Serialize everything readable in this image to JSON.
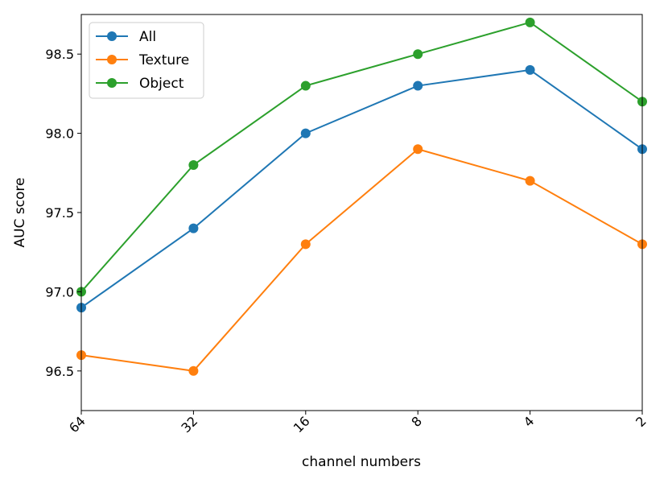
{
  "chart_data": {
    "type": "line",
    "title": "",
    "xlabel": "channel numbers",
    "ylabel": "AUC score",
    "categories": [
      "64",
      "32",
      "16",
      "8",
      "4",
      "2"
    ],
    "ylim": [
      96.25,
      98.75
    ],
    "yticks": [
      96.5,
      97.0,
      97.5,
      98.0,
      98.5
    ],
    "ytick_labels": [
      "96.5",
      "97.0",
      "97.5",
      "98.0",
      "98.5"
    ],
    "grid": false,
    "legend_position": "top-left",
    "series": [
      {
        "name": "All",
        "color": "#1f77b4",
        "values": [
          96.9,
          97.4,
          98.0,
          98.3,
          98.4,
          97.9
        ]
      },
      {
        "name": "Texture",
        "color": "#ff7f0e",
        "values": [
          96.6,
          96.5,
          97.3,
          97.9,
          97.7,
          97.3
        ]
      },
      {
        "name": "Object",
        "color": "#2ca02c",
        "values": [
          97.0,
          97.8,
          98.3,
          98.5,
          98.7,
          98.2
        ]
      }
    ]
  }
}
